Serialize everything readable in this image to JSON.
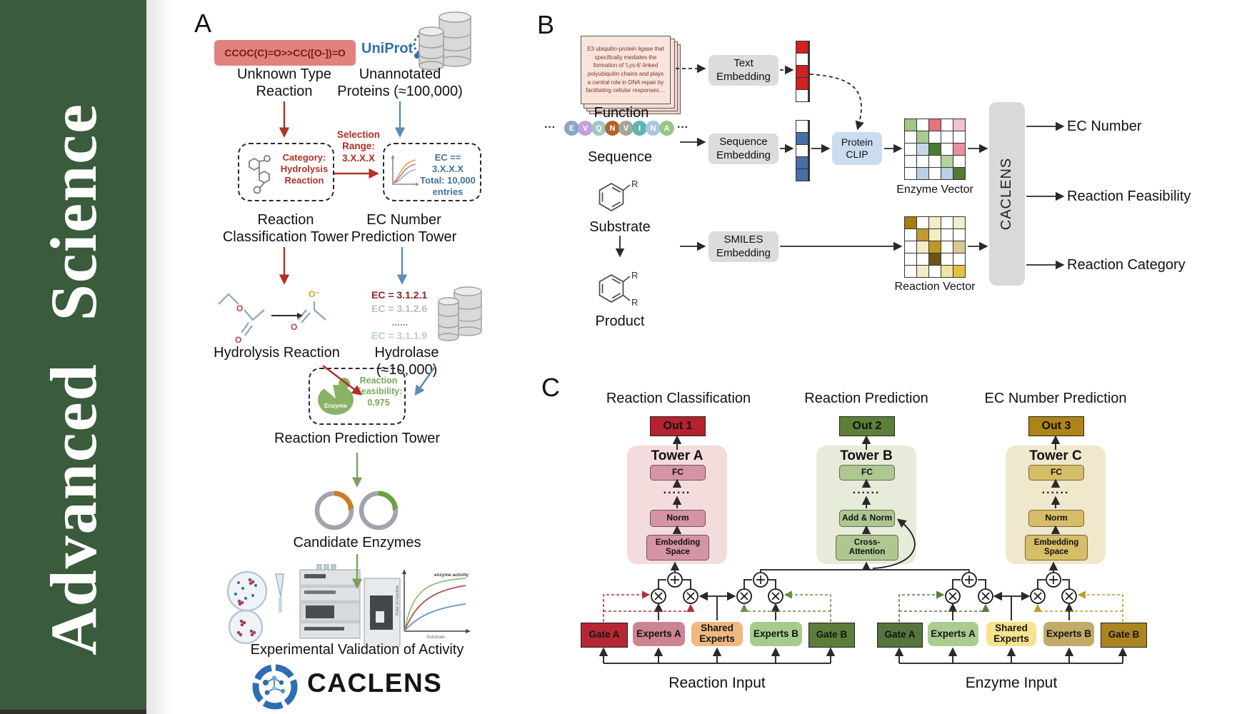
{
  "sidebar": {
    "title": "Advanced Science",
    "bg": "#3a5b3c"
  },
  "panelA": {
    "label": "A",
    "smiles": "CCOC(C)=O>>CC([O-])=O",
    "unknown_label": "Unknown Type\nReaction",
    "uniprot": "UniProt",
    "unannotated_label": "Unannotated\nProteins (≈100,000)",
    "selection_label": "Selection\nRange:\n3.X.X.X",
    "category_box": "Category:\nHydrolysis\nReaction",
    "ec_filter_box": "EC == 3.X.X.X\nTotal: 10,000\nentries",
    "tower1_label": "Reaction\nClassification Tower",
    "tower2_label": "EC Number\nPrediction Tower",
    "ec_list": [
      {
        "text": "EC = 3.1.2.1",
        "color": "#8e1f1f"
      },
      {
        "text": "EC = 3.1.2.6",
        "color": "#b9bfc4"
      },
      {
        "text": "......",
        "color": "#8a8f94"
      },
      {
        "text": "EC = 3.1.1.9",
        "color": "#b6cde2"
      }
    ],
    "hydrolysis_label": "Hydrolysis Reaction",
    "hydrolase_label": "Hydrolase (≈10,000)",
    "enzyme_badge": "Enzyme",
    "feasibility_box": "Reaction\nFeasibility:\n0.975",
    "tower3_label": "Reaction Prediction Tower",
    "candidates_label": "Candidate Enzymes",
    "validation_label": "Experimental Validation of Activity",
    "activity_chart": {
      "ylabel": "Rate of reaction",
      "xlabel": "Substrate",
      "annotation": "enzyme activity"
    },
    "brand": "CACLENS"
  },
  "panelB": {
    "label": "B",
    "function_card": "E3 ubiquitin-protein ligase that specifically mediates the formation of 'Lys-6'-linked polyubiquitin chains and plays a central role in DNA repair by facilitating cellular responses....",
    "function_label": "Function",
    "seq_ellipsis": "···",
    "residues": [
      {
        "letter": "E",
        "color": "#8ba4c1"
      },
      {
        "letter": "V",
        "color": "#c49fe0"
      },
      {
        "letter": "Q",
        "color": "#9fc7c0"
      },
      {
        "letter": "N",
        "color": "#b4622d"
      },
      {
        "letter": "V",
        "color": "#9fa99b"
      },
      {
        "letter": "I",
        "color": "#5fb3b3"
      },
      {
        "letter": "N",
        "color": "#a9c6e0"
      },
      {
        "letter": "A",
        "color": "#96c788"
      }
    ],
    "sequence_label": "Sequence",
    "r_label": "R",
    "substrate_label": "Substrate",
    "product_label": "Product",
    "text_embedding": "Text\nEmbedding",
    "sequence_embedding": "Sequence\nEmbedding",
    "smiles_embedding": "SMILES\nEmbedding",
    "protein_clip": "Protein\nCLIP",
    "text_vector": [
      "#d42020",
      "#ffffff",
      "#d42020",
      "#d42020",
      "#ffffff"
    ],
    "seq_vector": [
      "#ffffff",
      "#4a6fa8",
      "#ffffff",
      "#4a6fa8",
      "#4a6fa8"
    ],
    "enzyme_matrix": [
      [
        "#a3c585",
        "#ffffff",
        "#e2737f",
        "#ffffff",
        "#f2c2c8"
      ],
      [
        "#ffffff",
        "#a9cb8d",
        "#ffffff",
        "#ffffff",
        "#ffffff"
      ],
      [
        "#ffffff",
        "#c7d7ea",
        "#4c7a33",
        "#ffffff",
        "#e8919c"
      ],
      [
        "#ffffff",
        "#ffffff",
        "#ffffff",
        "#b3d39b",
        "#ffffff"
      ],
      [
        "#ffffff",
        "#bccee2",
        "#ffffff",
        "#b9cfe6",
        "#55792f"
      ]
    ],
    "reaction_matrix": [
      [
        "#a87d10",
        "#ffffff",
        "#f3ecc8",
        "#ffffff",
        "#f3ecc8"
      ],
      [
        "#ffffff",
        "#c19a2e",
        "#f3ecc8",
        "#ffffff",
        "#ffffff"
      ],
      [
        "#ffffff",
        "#f3ecc8",
        "#bf9727",
        "#ffffff",
        "#d9c98f"
      ],
      [
        "#ffffff",
        "#ffffff",
        "#6b5613",
        "#ffffff",
        "#ffffff"
      ],
      [
        "#ffffff",
        "#f3ecc8",
        "#ffffff",
        "#f0e3a8",
        "#e3c23e"
      ]
    ],
    "enzyme_vector_label": "Enzyme Vector",
    "reaction_vector_label": "Reaction Vector",
    "caclens": "CACLENS",
    "outputs": [
      "EC Number",
      "Reaction Feasibility",
      "Reaction Category"
    ]
  },
  "panelC": {
    "label": "C",
    "towers": [
      {
        "title": "Reaction Classification",
        "out": "Out 1",
        "out_color": "#b5222e",
        "name": "Tower A",
        "fc": "FC",
        "dots": "......",
        "mid": "Norm",
        "base": "Embedding\nSpace",
        "container": "#f3dcdc",
        "box": "#d594a4"
      },
      {
        "title": "Reaction Prediction",
        "out": "Out 2",
        "out_color": "#5c8038",
        "name": "Tower B",
        "fc": "FC",
        "dots": "......",
        "mid": "Add & Norm",
        "base": "Cross-\nAttention",
        "container": "#e7ecda",
        "box": "#aec791"
      },
      {
        "title": "EC Number Prediction",
        "out": "Out 3",
        "out_color": "#ad8415",
        "name": "Tower C",
        "fc": "FC",
        "dots": "......",
        "mid": "Norm",
        "base": "Embedding\nSpace",
        "container": "#f0e8cc",
        "box": "#d6bd68"
      }
    ],
    "groups": [
      {
        "label": "Reaction Input",
        "boxes": [
          {
            "text": "Gate A",
            "color": "#b52735"
          },
          {
            "text": "Experts A",
            "color": "#cc8493"
          },
          {
            "text": "Shared\nExperts",
            "color": "#eeb87f"
          },
          {
            "text": "Experts B",
            "color": "#a6cc8b"
          },
          {
            "text": "Gate B",
            "color": "#5d7d3b"
          }
        ]
      },
      {
        "label": "Enzyme Input",
        "boxes": [
          {
            "text": "Gate A",
            "color": "#56743c"
          },
          {
            "text": "Experts A",
            "color": "#a9cc90"
          },
          {
            "text": "Shared\nExperts",
            "color": "#f7e38d"
          },
          {
            "text": "Experts B",
            "color": "#c2ab66"
          },
          {
            "text": "Gate B",
            "color": "#ab851f"
          }
        ]
      }
    ]
  }
}
